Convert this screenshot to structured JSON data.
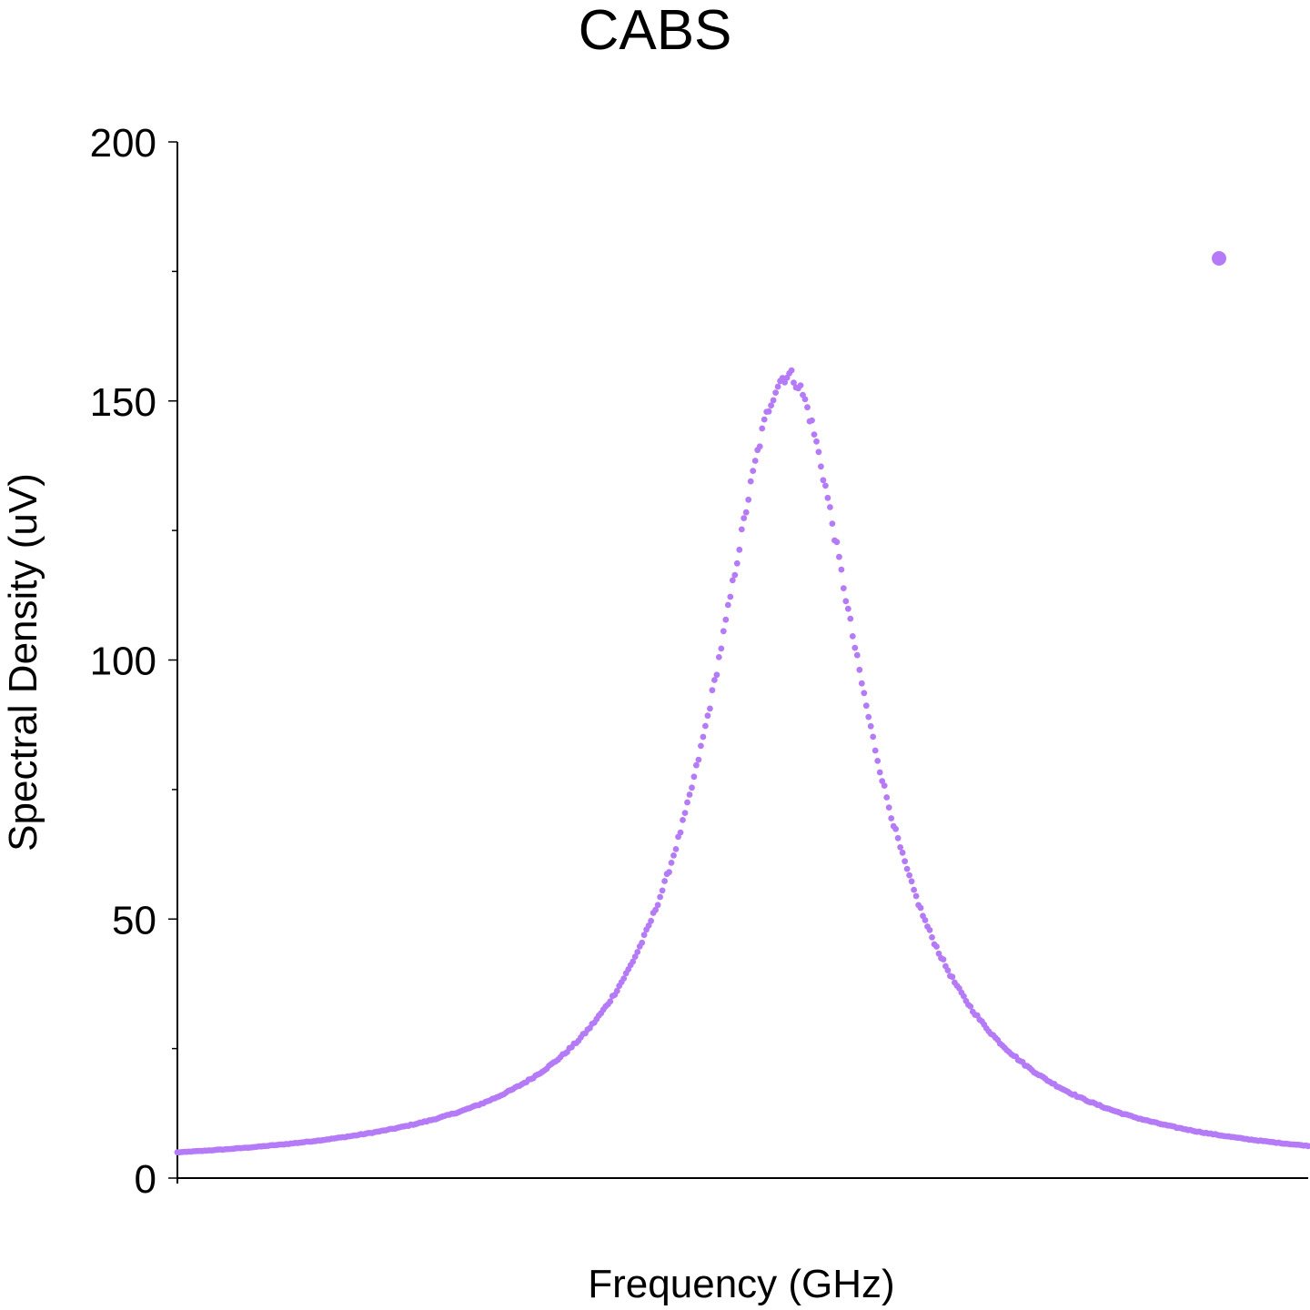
{
  "chart_data": {
    "type": "scatter",
    "title": "CABS",
    "xlabel": "Frequency (GHz)",
    "ylabel": "Spectral Density (uV)",
    "ylim": [
      0,
      200
    ],
    "xlim": [
      0,
      1
    ],
    "y_ticks": [
      0,
      50,
      100,
      150,
      200
    ],
    "y_tick_labels": [
      "0",
      "50",
      "100",
      "150",
      "200"
    ],
    "y_minor_ticks": [
      25,
      75,
      125,
      175
    ],
    "x_tick_labels": [],
    "grid": false,
    "legend": "top-right (marker only, no label text)",
    "marker_color": "#b57bf7",
    "series": [
      {
        "peak_x": 0.54,
        "peak_y": 155,
        "half_width": 0.082,
        "baseline": 1.5,
        "n_points": 500,
        "points": [
          [
            0.0,
            4.5
          ],
          [
            0.05,
            5.9
          ],
          [
            0.1,
            8.2
          ],
          [
            0.15,
            10.8
          ],
          [
            0.2,
            14.8
          ],
          [
            0.25,
            19.8
          ],
          [
            0.3,
            26.5
          ],
          [
            0.35,
            35.8
          ],
          [
            0.4,
            49.5
          ],
          [
            0.45,
            75.0
          ],
          [
            0.48,
            95.0
          ],
          [
            0.5,
            120.0
          ],
          [
            0.52,
            143.0
          ],
          [
            0.54,
            155.0
          ],
          [
            0.56,
            145.0
          ],
          [
            0.58,
            122.0
          ],
          [
            0.6,
            98.0
          ],
          [
            0.62,
            76.0
          ],
          [
            0.65,
            51.0
          ],
          [
            0.7,
            29.0
          ],
          [
            0.75,
            19.0
          ],
          [
            0.8,
            12.5
          ],
          [
            0.85,
            9.5
          ],
          [
            0.9,
            7.2
          ],
          [
            0.95,
            5.5
          ],
          [
            1.0,
            4.0
          ]
        ]
      }
    ]
  }
}
